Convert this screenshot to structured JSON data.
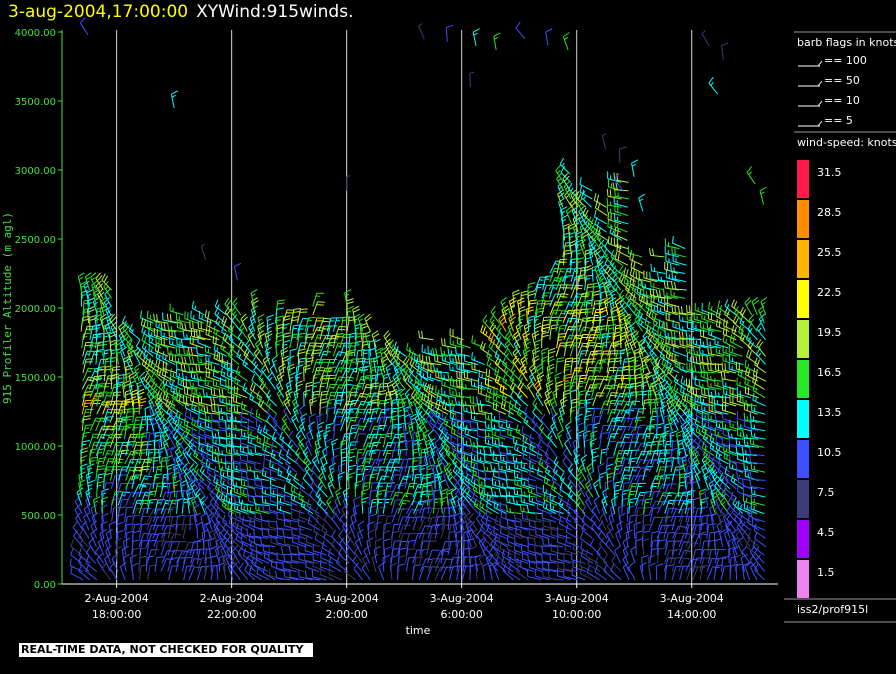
{
  "title": {
    "timestamp": "3-aug-2004,17:00:00",
    "dataset": "XYWind:915winds."
  },
  "footnote": "REAL-TIME DATA, NOT CHECKED FOR QUALITY",
  "chart_data": {
    "type": "wind-barb",
    "ylabel": "915 Profiler Altitude (m agl)",
    "xlabel": "time",
    "ylim": [
      0,
      4000
    ],
    "yticks": [
      "0.00",
      "500.00",
      "1000.00",
      "1500.00",
      "2000.00",
      "2500.00",
      "3000.00",
      "3500.00",
      "4000.00"
    ],
    "xticks": [
      {
        "hour": 18,
        "line1": "2-Aug-2004",
        "line2": "18:00:00"
      },
      {
        "hour": 22,
        "line1": "2-Aug-2004",
        "line2": "22:00:00"
      },
      {
        "hour": 26,
        "line1": "3-Aug-2004",
        "line2": "2:00:00"
      },
      {
        "hour": 30,
        "line1": "3-Aug-2004",
        "line2": "6:00:00"
      },
      {
        "hour": 34,
        "line1": "3-Aug-2004",
        "line2": "10:00:00"
      },
      {
        "hour": 38,
        "line1": "3-Aug-2004",
        "line2": "14:00:00"
      }
    ],
    "xlim_hours": [
      16.1,
      41.0
    ],
    "grid_vertical": true,
    "time_step_hours": 0.25,
    "height_step_m": 60,
    "speed_units": "knots",
    "legend_barbs": {
      "title": "barb flags in knots",
      "entries": [
        "== 100",
        "== 50",
        "== 10",
        "== 5"
      ]
    },
    "colorbar": {
      "title": "wind-speed: knots",
      "levels": [
        "31.5",
        "28.5",
        "25.5",
        "22.5",
        "19.5",
        "16.5",
        "13.5",
        "10.5",
        "7.5",
        "4.5",
        "1.5"
      ],
      "colors": [
        "#ff1a4a",
        "#ff8c00",
        "#ffb400",
        "#ffff00",
        "#b4f03c",
        "#28e628",
        "#00ffff",
        "#3c50ff",
        "#3c3c78",
        "#a000ff",
        "#ee82ee"
      ]
    },
    "station": "iss2/prof915l"
  }
}
